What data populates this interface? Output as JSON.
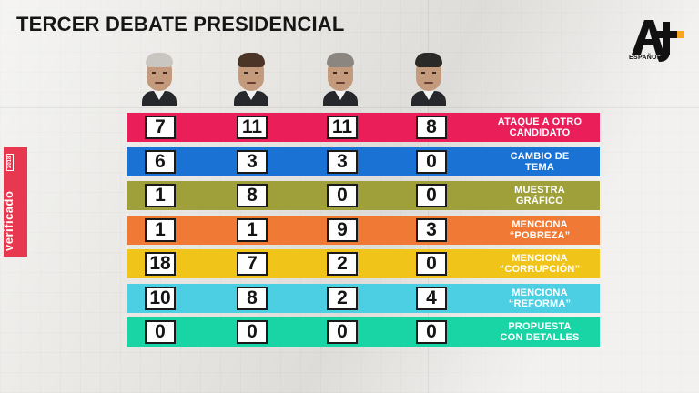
{
  "header": {
    "title": "TERCER DEBATE PRESIDENCIAL"
  },
  "brand": {
    "logo_text": "AJ+",
    "sublabel": "ESPAÑOL",
    "accent": "#f5a623"
  },
  "side_tag": {
    "text": "verificado",
    "year": "2018",
    "color": "#e8384f"
  },
  "candidates": [
    {
      "icon": "candidate-1-portrait-icon",
      "hair": "#c9c6c2"
    },
    {
      "icon": "candidate-2-portrait-icon",
      "hair": "#4a3526"
    },
    {
      "icon": "candidate-3-portrait-icon",
      "hair": "#8b8680"
    },
    {
      "icon": "candidate-4-portrait-icon",
      "hair": "#2c2a28"
    }
  ],
  "chart_data": {
    "type": "table",
    "title": "TERCER DEBATE PRESIDENCIAL",
    "categories": [
      "ATAQUE A OTRO\nCANDIDATO",
      "CAMBIO DE\nTEMA",
      "MUESTRA\nGRÁFICO",
      "MENCIONA\n“POBREZA”",
      "MENCIONA\n“CORRUPCIÓN”",
      "MENCIONA\n“REFORMA”",
      "PROPUESTA\nCON DETALLES"
    ],
    "row_colors": [
      "#ea1f5a",
      "#1a73d4",
      "#9fa03a",
      "#f07a35",
      "#f0c419",
      "#4ccfe2",
      "#19d5a6"
    ],
    "series": [
      {
        "name": "Candidato 1",
        "values": [
          7,
          6,
          1,
          1,
          18,
          10,
          0
        ]
      },
      {
        "name": "Candidato 2",
        "values": [
          11,
          3,
          8,
          1,
          7,
          8,
          0
        ]
      },
      {
        "name": "Candidato 3",
        "values": [
          11,
          3,
          0,
          9,
          2,
          2,
          0
        ]
      },
      {
        "name": "Candidato 4",
        "values": [
          8,
          0,
          0,
          3,
          0,
          4,
          0
        ]
      }
    ]
  }
}
